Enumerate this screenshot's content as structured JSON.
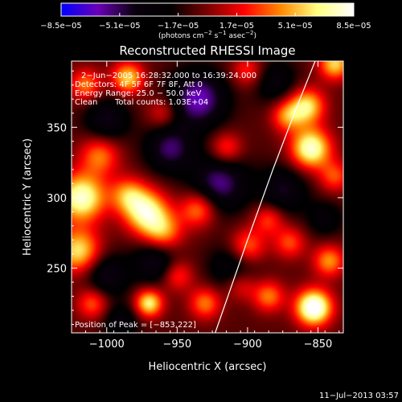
{
  "chart_data": {
    "type": "heatmap",
    "title": "Reconstructed RHESSI Image",
    "xlabel": "Heliocentric X (arcsec)",
    "ylabel": "Heliocentric Y (arcsec)",
    "xlim": [
      -1025,
      -832
    ],
    "ylim": [
      204,
      397
    ],
    "x_ticks": [
      -1000,
      -950,
      -900,
      -850
    ],
    "x_tick_labels": [
      "−1000",
      "−950",
      "−900",
      "−850"
    ],
    "y_ticks": [
      250,
      300,
      350
    ],
    "y_tick_labels": [
      "250",
      "300",
      "350"
    ],
    "colorbar": {
      "min": -8.5e-05,
      "max": 8.5e-05,
      "tick_values": [
        -8.5e-05,
        -5.1e-05,
        -1.7e-05,
        1.7e-05,
        5.1e-05,
        8.5e-05
      ],
      "tick_labels": [
        "−8.5e−05",
        "−5.1e−05",
        "−1.7e−05",
        "1.7e−05",
        "5.1e−05",
        "8.5e−05"
      ],
      "units_prefix": "(photons cm",
      "units_exp1": "−2",
      "units_mid": " s",
      "units_exp2": "−1",
      "units_mid2": " asec",
      "units_exp3": "−2",
      "units_suffix": ")",
      "colors": [
        "#0000ff",
        "#6a00b8",
        "#0a000e",
        "#000000",
        "#7a0000",
        "#ff0000",
        "#ff8800",
        "#ffff80",
        "#ffffff"
      ]
    },
    "annotations": {
      "time_range": "2−Jun−2005 16:28:32.000 to 16:39:24.000",
      "detectors": "Detectors: 4F 5F 6F 7F 8F, Att 0",
      "energy_range": "Energy Range: 25.0 − 50.0 keV",
      "clean_label": "Clean",
      "total_counts": "Total counts: 1.03E+04",
      "peak_position": "Position of Peak = [−853,222]"
    },
    "peak": [
      -853,
      222
    ],
    "limb_curve": [
      [
        -923,
        204
      ],
      [
        -900,
        270
      ],
      [
        -882,
        320
      ],
      [
        -866,
        362
      ],
      [
        -852,
        397
      ]
    ],
    "blobs": [
      {
        "x": -1018,
        "y": 300,
        "amp": 1.0,
        "s": 12
      },
      {
        "x": -1020,
        "y": 262,
        "amp": 0.8,
        "s": 11
      },
      {
        "x": -1005,
        "y": 330,
        "amp": 0.55,
        "s": 10
      },
      {
        "x": -985,
        "y": 385,
        "amp": 0.75,
        "s": 8
      },
      {
        "x": -1015,
        "y": 380,
        "amp": 0.55,
        "s": 8
      },
      {
        "x": -972,
        "y": 290,
        "amp": 0.9,
        "s": 11
      },
      {
        "x": -960,
        "y": 275,
        "amp": 0.6,
        "s": 10
      },
      {
        "x": -985,
        "y": 302,
        "amp": 0.55,
        "s": 9
      },
      {
        "x": -935,
        "y": 292,
        "amp": 0.6,
        "s": 9
      },
      {
        "x": -900,
        "y": 265,
        "amp": 0.55,
        "s": 9
      },
      {
        "x": -885,
        "y": 285,
        "amp": 0.45,
        "s": 8
      },
      {
        "x": -915,
        "y": 335,
        "amp": 0.45,
        "s": 8
      },
      {
        "x": -970,
        "y": 225,
        "amp": 0.85,
        "s": 7
      },
      {
        "x": -950,
        "y": 245,
        "amp": 0.45,
        "s": 8
      },
      {
        "x": -930,
        "y": 225,
        "amp": 0.55,
        "s": 8
      },
      {
        "x": -1010,
        "y": 225,
        "amp": 0.5,
        "s": 8
      },
      {
        "x": -905,
        "y": 238,
        "amp": 0.4,
        "s": 8
      },
      {
        "x": -885,
        "y": 230,
        "amp": 0.55,
        "s": 8
      },
      {
        "x": -870,
        "y": 268,
        "amp": 0.45,
        "s": 8
      },
      {
        "x": -853,
        "y": 222,
        "amp": 1.2,
        "s": 9
      },
      {
        "x": -842,
        "y": 255,
        "amp": 0.6,
        "s": 8
      },
      {
        "x": -855,
        "y": 335,
        "amp": 1.0,
        "s": 10
      },
      {
        "x": -858,
        "y": 365,
        "amp": 0.8,
        "s": 9
      },
      {
        "x": -838,
        "y": 395,
        "amp": 0.75,
        "s": 8
      },
      {
        "x": -838,
        "y": 315,
        "amp": 0.45,
        "s": 8
      },
      {
        "x": -872,
        "y": 358,
        "amp": 0.55,
        "s": 8
      },
      {
        "x": -960,
        "y": 360,
        "amp": 0.35,
        "s": 8
      },
      {
        "x": -900,
        "y": 390,
        "amp": 0.4,
        "s": 8
      },
      {
        "x": -935,
        "y": 370,
        "amp": -0.7,
        "s": 14
      },
      {
        "x": -920,
        "y": 310,
        "amp": -0.6,
        "s": 14
      },
      {
        "x": -955,
        "y": 335,
        "amp": -0.55,
        "s": 12
      },
      {
        "x": -1000,
        "y": 355,
        "amp": -0.45,
        "s": 11
      },
      {
        "x": -965,
        "y": 255,
        "amp": -0.5,
        "s": 11
      },
      {
        "x": -910,
        "y": 250,
        "amp": -0.4,
        "s": 12
      },
      {
        "x": -875,
        "y": 305,
        "amp": -0.45,
        "s": 12
      },
      {
        "x": -880,
        "y": 382,
        "amp": -0.35,
        "s": 11
      },
      {
        "x": -1000,
        "y": 245,
        "amp": -0.45,
        "s": 11
      },
      {
        "x": -990,
        "y": 212,
        "amp": -0.35,
        "s": 9
      },
      {
        "x": -845,
        "y": 285,
        "amp": -0.3,
        "s": 9
      }
    ]
  },
  "timestamp": "11−Jul−2013 03:57"
}
